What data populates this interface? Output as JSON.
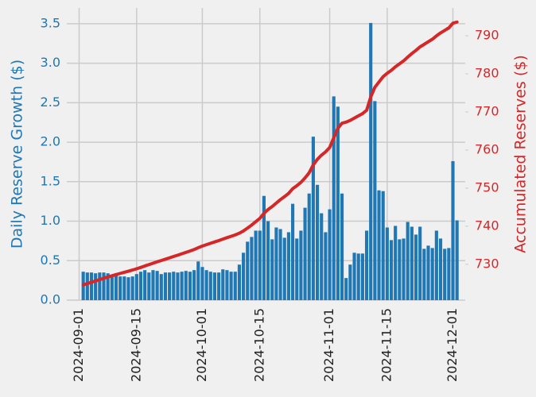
{
  "chart_data": {
    "type": "bar",
    "x": [
      "2024-09-02",
      "2024-09-03",
      "2024-09-04",
      "2024-09-05",
      "2024-09-06",
      "2024-09-07",
      "2024-09-08",
      "2024-09-09",
      "2024-09-10",
      "2024-09-11",
      "2024-09-12",
      "2024-09-13",
      "2024-09-14",
      "2024-09-15",
      "2024-09-16",
      "2024-09-17",
      "2024-09-18",
      "2024-09-19",
      "2024-09-20",
      "2024-09-21",
      "2024-09-22",
      "2024-09-23",
      "2024-09-24",
      "2024-09-25",
      "2024-09-26",
      "2024-09-27",
      "2024-09-28",
      "2024-09-29",
      "2024-09-30",
      "2024-10-01",
      "2024-10-02",
      "2024-10-03",
      "2024-10-04",
      "2024-10-05",
      "2024-10-06",
      "2024-10-07",
      "2024-10-08",
      "2024-10-09",
      "2024-10-10",
      "2024-10-11",
      "2024-10-12",
      "2024-10-13",
      "2024-10-14",
      "2024-10-15",
      "2024-10-16",
      "2024-10-17",
      "2024-10-18",
      "2024-10-19",
      "2024-10-20",
      "2024-10-21",
      "2024-10-22",
      "2024-10-23",
      "2024-10-24",
      "2024-10-25",
      "2024-10-26",
      "2024-10-27",
      "2024-10-28",
      "2024-10-29",
      "2024-10-30",
      "2024-10-31",
      "2024-11-01",
      "2024-11-02",
      "2024-11-03",
      "2024-11-04",
      "2024-11-05",
      "2024-11-06",
      "2024-11-07",
      "2024-11-08",
      "2024-11-09",
      "2024-11-10",
      "2024-11-11",
      "2024-11-12",
      "2024-11-13",
      "2024-11-14",
      "2024-11-15",
      "2024-11-16",
      "2024-11-17",
      "2024-11-18",
      "2024-11-19",
      "2024-11-20",
      "2024-11-21",
      "2024-11-22",
      "2024-11-23",
      "2024-11-24",
      "2024-11-25",
      "2024-11-26",
      "2024-11-27",
      "2024-11-28",
      "2024-11-29",
      "2024-11-30",
      "2024-12-01",
      "2024-12-02"
    ],
    "series": [
      {
        "type": "bar",
        "axis": "y",
        "color": "#1f77b4",
        "values": [
          0.36,
          0.35,
          0.35,
          0.34,
          0.35,
          0.35,
          0.34,
          0.32,
          0.31,
          0.3,
          0.3,
          0.29,
          0.3,
          0.33,
          0.36,
          0.38,
          0.35,
          0.38,
          0.37,
          0.33,
          0.35,
          0.35,
          0.36,
          0.35,
          0.36,
          0.37,
          0.36,
          0.38,
          0.49,
          0.42,
          0.38,
          0.36,
          0.35,
          0.35,
          0.39,
          0.38,
          0.36,
          0.36,
          0.45,
          0.6,
          0.74,
          0.8,
          0.88,
          0.88,
          1.32,
          1.0,
          0.77,
          0.92,
          0.9,
          0.79,
          0.86,
          1.22,
          0.78,
          0.88,
          1.17,
          1.35,
          2.07,
          1.46,
          1.1,
          0.86,
          1.15,
          2.58,
          2.45,
          1.35,
          0.28,
          0.45,
          0.6,
          0.59,
          0.59,
          0.88,
          3.51,
          2.52,
          1.39,
          1.38,
          0.92,
          0.76,
          0.94,
          0.77,
          0.78,
          0.99,
          0.93,
          0.83,
          0.93,
          0.65,
          0.69,
          0.66,
          0.88,
          0.78,
          0.65,
          0.66,
          1.76,
          1.01
        ]
      },
      {
        "type": "line",
        "axis": "y2",
        "color": "#d62728",
        "values": [
          724.6,
          724.95,
          725.3,
          725.64,
          725.99,
          726.34,
          726.68,
          727.0,
          727.31,
          727.61,
          727.91,
          728.2,
          728.5,
          728.83,
          729.19,
          729.57,
          729.92,
          730.3,
          730.67,
          731.0,
          731.35,
          731.7,
          732.06,
          732.41,
          732.77,
          733.14,
          733.5,
          733.88,
          734.37,
          734.79,
          735.17,
          735.53,
          735.88,
          736.23,
          736.62,
          737.0,
          737.36,
          737.72,
          738.17,
          738.77,
          739.51,
          740.31,
          741.19,
          742.07,
          743.39,
          744.39,
          745.16,
          746.08,
          746.98,
          747.77,
          748.63,
          749.85,
          750.63,
          751.51,
          752.68,
          754.03,
          756.1,
          757.56,
          758.66,
          759.52,
          760.67,
          763.25,
          765.7,
          767.05,
          767.33,
          767.78,
          768.38,
          768.97,
          769.56,
          770.44,
          773.95,
          776.47,
          777.86,
          779.24,
          780.16,
          780.92,
          781.86,
          782.63,
          783.41,
          784.4,
          785.33,
          786.16,
          787.09,
          787.74,
          788.43,
          789.09,
          789.97,
          790.75,
          791.4,
          792.06,
          793.3,
          793.6
        ]
      }
    ],
    "y_label": "Daily Reserve Growth ($)",
    "y2_label": "Accumulated Reserves ($)",
    "xlim": [
      "2024-08-29",
      "2024-12-04"
    ],
    "xticks": [
      "2024-09-01",
      "2024-09-15",
      "2024-10-01",
      "2024-10-15",
      "2024-11-01",
      "2024-11-15",
      "2024-12-01"
    ],
    "ylim": [
      0,
      3.7
    ],
    "yticks": [
      {
        "value": 0,
        "label": "0.0"
      },
      {
        "value": 0.5,
        "label": "0.5"
      },
      {
        "value": 1,
        "label": "1.0"
      },
      {
        "value": 1.5,
        "label": "1.5"
      },
      {
        "value": 2,
        "label": "2.0"
      },
      {
        "value": 2.5,
        "label": "2.5"
      },
      {
        "value": 3,
        "label": "3.0"
      },
      {
        "value": 3.5,
        "label": "3.5"
      }
    ],
    "y2lim": [
      720.6,
      797.3
    ],
    "y2ticks": [
      730,
      740,
      750,
      760,
      770,
      780,
      790
    ],
    "grid": true
  }
}
